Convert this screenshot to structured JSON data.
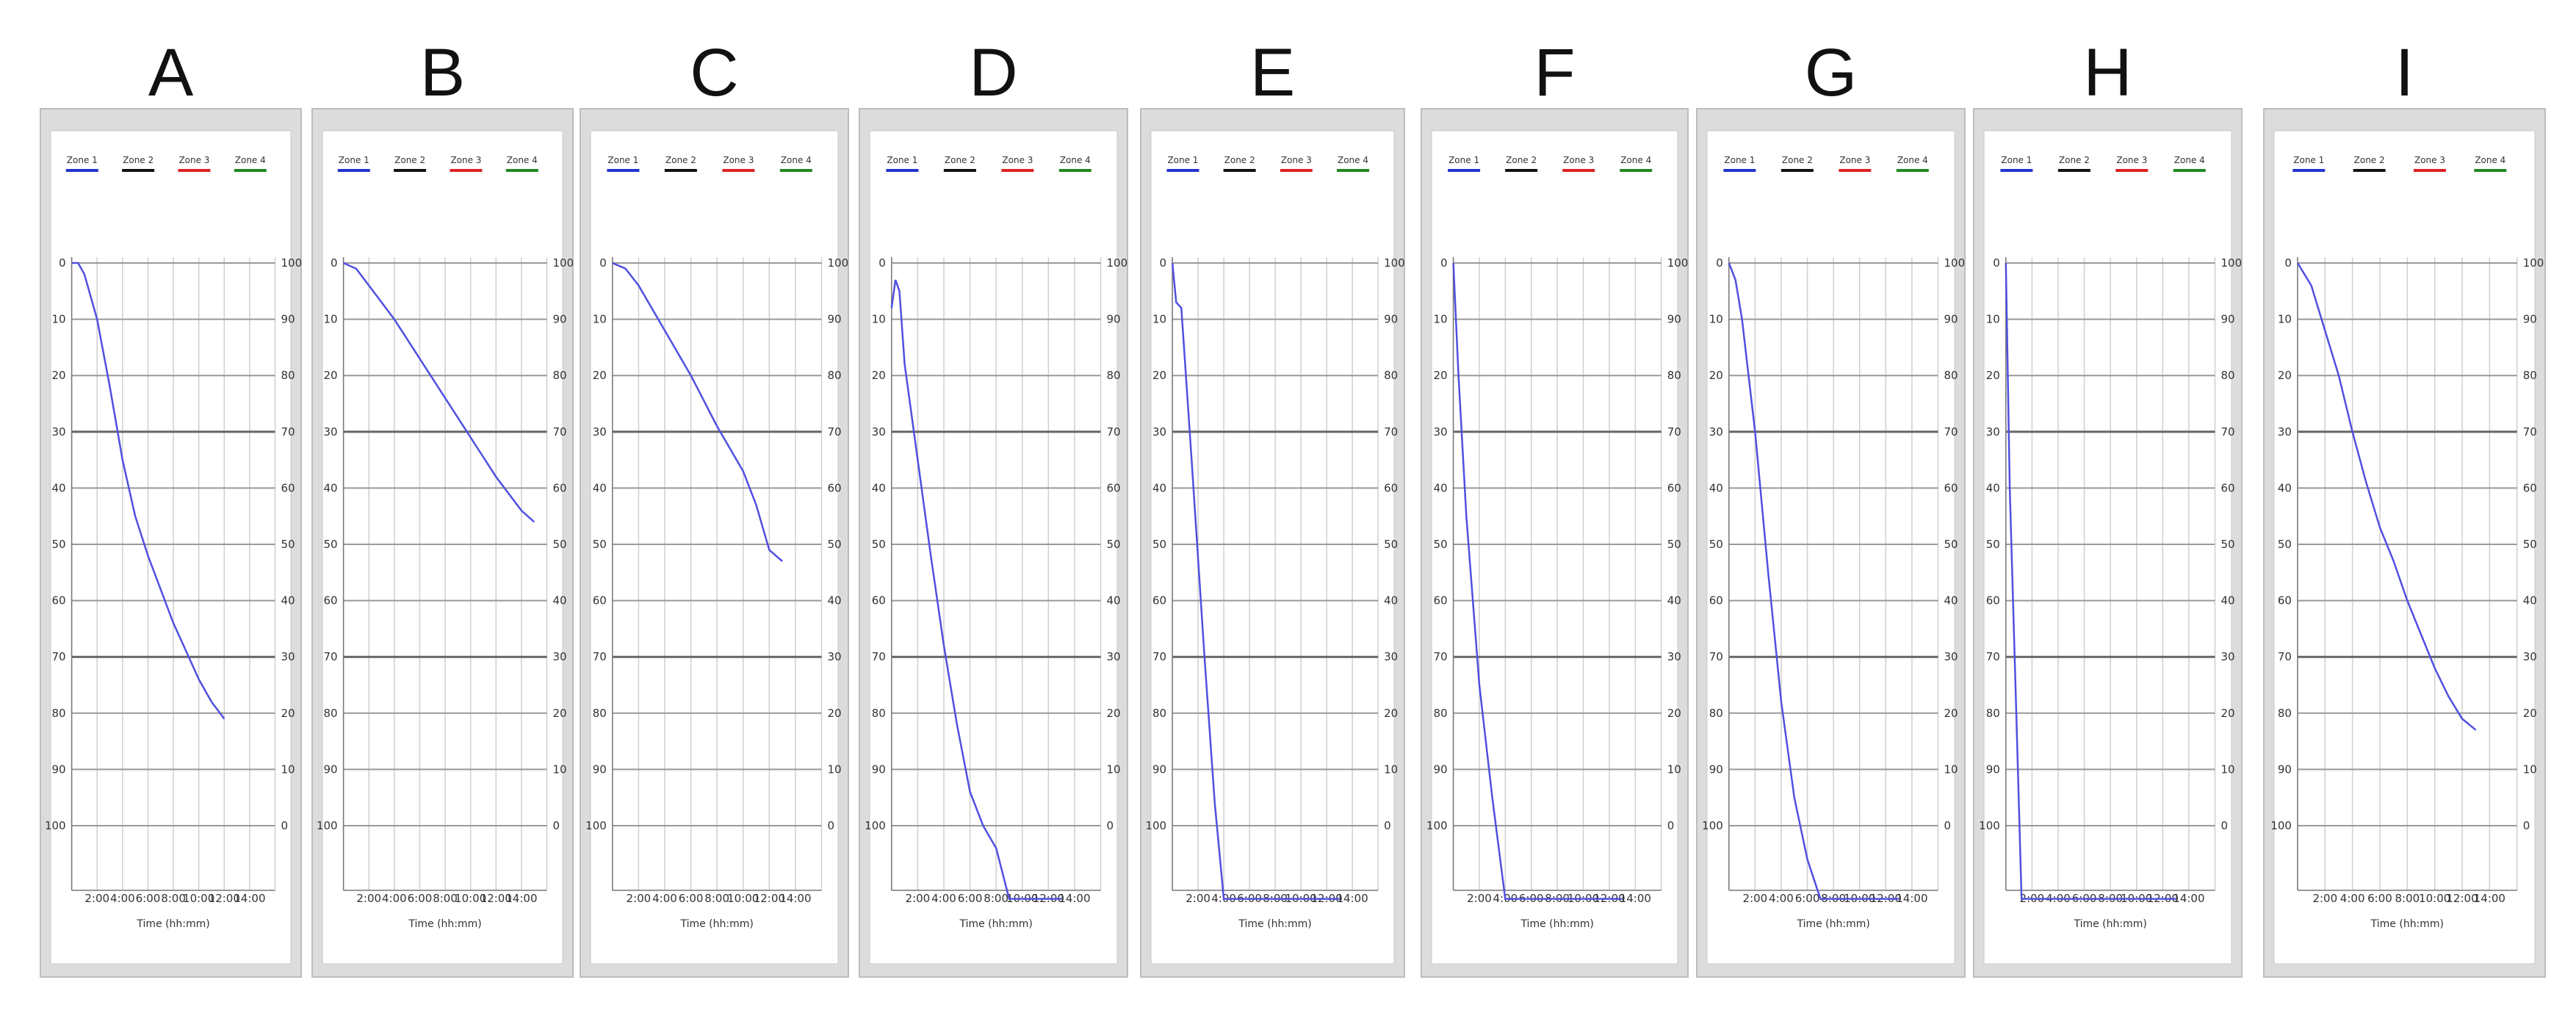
{
  "chart_data": [
    {
      "type": "line",
      "label": "A",
      "xlabel": "Time (hh:mm)",
      "xlim": [
        0,
        16
      ],
      "ylim": [
        0,
        100
      ],
      "x_ticks": [
        "2:00",
        "4:00",
        "6:00",
        "8:00",
        "10:00",
        "12:00",
        "14:00"
      ],
      "y_left_ticks": [
        "0",
        "10",
        "20",
        "30",
        "40",
        "50",
        "60",
        "70",
        "80",
        "90",
        "100"
      ],
      "y_right_ticks": [
        "100",
        "90",
        "80",
        "70",
        "60",
        "50",
        "40",
        "30",
        "20",
        "10",
        "0"
      ],
      "legend": [
        "Zone 1",
        "Zone 2",
        "Zone 3",
        "Zone 4"
      ],
      "series": [
        {
          "color": "#5050e0",
          "points": [
            [
              0,
              0
            ],
            [
              0.5,
              0
            ],
            [
              1,
              2
            ],
            [
              2,
              10
            ],
            [
              3,
              22
            ],
            [
              4,
              35
            ],
            [
              5,
              45
            ],
            [
              6,
              52
            ],
            [
              7,
              58
            ],
            [
              8,
              64
            ],
            [
              9,
              69
            ],
            [
              10,
              74
            ],
            [
              11,
              78
            ],
            [
              12,
              81
            ]
          ]
        }
      ]
    },
    {
      "type": "line",
      "label": "B",
      "xlabel": "Time (hh:mm)",
      "xlim": [
        0,
        16
      ],
      "ylim": [
        0,
        100
      ],
      "x_ticks": [
        "2:00",
        "4:00",
        "6:00",
        "8:00",
        "10:00",
        "12:00",
        "14:00"
      ],
      "y_left_ticks": [
        "0",
        "10",
        "20",
        "30",
        "40",
        "50",
        "60",
        "70",
        "80",
        "90",
        "100"
      ],
      "y_right_ticks": [
        "100",
        "90",
        "80",
        "70",
        "60",
        "50",
        "40",
        "30",
        "20",
        "10",
        "0"
      ],
      "legend": [
        "Zone 1",
        "Zone 2",
        "Zone 3",
        "Zone 4"
      ],
      "series": [
        {
          "color": "#5050e0",
          "points": [
            [
              0,
              0
            ],
            [
              1,
              1
            ],
            [
              2,
              4
            ],
            [
              4,
              10
            ],
            [
              6,
              17
            ],
            [
              8,
              24
            ],
            [
              10,
              31
            ],
            [
              12,
              38
            ],
            [
              14,
              44
            ],
            [
              15,
              46
            ]
          ]
        }
      ]
    },
    {
      "type": "line",
      "label": "C",
      "xlabel": "Time (hh:mm)",
      "xlim": [
        0,
        16
      ],
      "ylim": [
        0,
        100
      ],
      "x_ticks": [
        "2:00",
        "4:00",
        "6:00",
        "8:00",
        "10:00",
        "12:00",
        "14:00"
      ],
      "y_left_ticks": [
        "0",
        "10",
        "20",
        "30",
        "40",
        "50",
        "60",
        "70",
        "80",
        "90",
        "100"
      ],
      "y_right_ticks": [
        "100",
        "90",
        "80",
        "70",
        "60",
        "50",
        "40",
        "30",
        "20",
        "10",
        "0"
      ],
      "legend": [
        "Zone 1",
        "Zone 2",
        "Zone 3",
        "Zone 4"
      ],
      "series": [
        {
          "color": "#5050e0",
          "points": [
            [
              0,
              0
            ],
            [
              1,
              1
            ],
            [
              2,
              4
            ],
            [
              3,
              8
            ],
            [
              4,
              12
            ],
            [
              6,
              20
            ],
            [
              8,
              29
            ],
            [
              10,
              37
            ],
            [
              11,
              43
            ],
            [
              12,
              51
            ],
            [
              13,
              53
            ]
          ]
        }
      ]
    },
    {
      "type": "line",
      "label": "D",
      "xlabel": "Time (hh:mm)",
      "xlim": [
        0,
        16
      ],
      "ylim": [
        0,
        100
      ],
      "x_ticks": [
        "2:00",
        "4:00",
        "6:00",
        "8:00",
        "10:00",
        "12:00",
        "14:00"
      ],
      "y_left_ticks": [
        "0",
        "10",
        "20",
        "30",
        "40",
        "50",
        "60",
        "70",
        "80",
        "90",
        "100"
      ],
      "y_right_ticks": [
        "100",
        "90",
        "80",
        "70",
        "60",
        "50",
        "40",
        "30",
        "20",
        "10",
        "0"
      ],
      "legend": [
        "Zone 1",
        "Zone 2",
        "Zone 3",
        "Zone 4"
      ],
      "series": [
        {
          "color": "#5050e0",
          "points": [
            [
              0,
              8
            ],
            [
              0.3,
              3
            ],
            [
              0.6,
              5
            ],
            [
              1,
              18
            ],
            [
              2,
              35
            ],
            [
              3,
              52
            ],
            [
              4,
              68
            ],
            [
              5,
              82
            ],
            [
              6,
              94
            ],
            [
              7,
              100
            ],
            [
              8,
              104
            ],
            [
              9,
              113
            ],
            [
              10,
              113
            ],
            [
              13,
              113
            ]
          ]
        }
      ]
    },
    {
      "type": "line",
      "label": "E",
      "xlabel": "Time (hh:mm)",
      "xlim": [
        0,
        16
      ],
      "ylim": [
        0,
        100
      ],
      "x_ticks": [
        "2:00",
        "4:00",
        "6:00",
        "8:00",
        "10:00",
        "12:00",
        "14:00"
      ],
      "y_left_ticks": [
        "0",
        "10",
        "20",
        "30",
        "40",
        "50",
        "60",
        "70",
        "80",
        "90",
        "100"
      ],
      "y_right_ticks": [
        "100",
        "90",
        "80",
        "70",
        "60",
        "50",
        "40",
        "30",
        "20",
        "10",
        "0"
      ],
      "legend": [
        "Zone 1",
        "Zone 2",
        "Zone 3",
        "Zone 4"
      ],
      "series": [
        {
          "color": "#5050e0",
          "points": [
            [
              0,
              0
            ],
            [
              0.3,
              7
            ],
            [
              0.7,
              8
            ],
            [
              1.5,
              35
            ],
            [
              2.5,
              70
            ],
            [
              3.3,
              96
            ],
            [
              4,
              113
            ],
            [
              13,
              113
            ]
          ]
        }
      ]
    },
    {
      "type": "line",
      "label": "F",
      "xlabel": "Time (hh:mm)",
      "xlim": [
        0,
        16
      ],
      "ylim": [
        0,
        100
      ],
      "x_ticks": [
        "2:00",
        "4:00",
        "6:00",
        "8:00",
        "10:00",
        "12:00",
        "14:00"
      ],
      "y_left_ticks": [
        "0",
        "10",
        "20",
        "30",
        "40",
        "50",
        "60",
        "70",
        "80",
        "90",
        "100"
      ],
      "y_right_ticks": [
        "100",
        "90",
        "80",
        "70",
        "60",
        "50",
        "40",
        "30",
        "20",
        "10",
        "0"
      ],
      "legend": [
        "Zone 1",
        "Zone 2",
        "Zone 3",
        "Zone 4"
      ],
      "series": [
        {
          "color": "#5050e0",
          "points": [
            [
              0,
              0
            ],
            [
              0.4,
              20
            ],
            [
              1,
              45
            ],
            [
              2,
              75
            ],
            [
              3,
              95
            ],
            [
              4,
              113
            ],
            [
              13,
              113
            ]
          ]
        }
      ]
    },
    {
      "type": "line",
      "label": "G",
      "xlabel": "Time (hh:mm)",
      "xlim": [
        0,
        16
      ],
      "ylim": [
        0,
        100
      ],
      "x_ticks": [
        "2:00",
        "4:00",
        "6:00",
        "8:00",
        "10:00",
        "12:00",
        "14:00"
      ],
      "y_left_ticks": [
        "0",
        "10",
        "20",
        "30",
        "40",
        "50",
        "60",
        "70",
        "80",
        "90",
        "100"
      ],
      "y_right_ticks": [
        "100",
        "90",
        "80",
        "70",
        "60",
        "50",
        "40",
        "30",
        "20",
        "10",
        "0"
      ],
      "legend": [
        "Zone 1",
        "Zone 2",
        "Zone 3",
        "Zone 4"
      ],
      "series": [
        {
          "color": "#5050e0",
          "points": [
            [
              0,
              0
            ],
            [
              0.5,
              3
            ],
            [
              1,
              10
            ],
            [
              2,
              30
            ],
            [
              3,
              55
            ],
            [
              4,
              78
            ],
            [
              5,
              95
            ],
            [
              6,
              106
            ],
            [
              7,
              113
            ],
            [
              13,
              113
            ]
          ]
        }
      ]
    },
    {
      "type": "line",
      "label": "H",
      "xlabel": "Time (hh:mm)",
      "xlim": [
        0,
        16
      ],
      "ylim": [
        0,
        100
      ],
      "x_ticks": [
        "2:00",
        "4:00",
        "6:00",
        "8:00",
        "10:00",
        "12:00",
        "14:00"
      ],
      "y_left_ticks": [
        "0",
        "10",
        "20",
        "30",
        "40",
        "50",
        "60",
        "70",
        "80",
        "90",
        "100"
      ],
      "y_right_ticks": [
        "100",
        "90",
        "80",
        "70",
        "60",
        "50",
        "40",
        "30",
        "20",
        "10",
        "0"
      ],
      "legend": [
        "Zone 1",
        "Zone 2",
        "Zone 3",
        "Zone 4"
      ],
      "series": [
        {
          "color": "#5050e0",
          "points": [
            [
              0,
              0
            ],
            [
              0.3,
              40
            ],
            [
              0.8,
              80
            ],
            [
              1.2,
              113
            ],
            [
              13,
              113
            ]
          ]
        }
      ]
    },
    {
      "type": "line",
      "label": "I",
      "xlabel": "Time (hh:mm)",
      "xlim": [
        0,
        16
      ],
      "ylim": [
        0,
        100
      ],
      "x_ticks": [
        "2:00",
        "4:00",
        "6:00",
        "8:00",
        "10:00",
        "12:00",
        "14:00"
      ],
      "y_left_ticks": [
        "0",
        "10",
        "20",
        "30",
        "40",
        "50",
        "60",
        "70",
        "80",
        "90",
        "100"
      ],
      "y_right_ticks": [
        "100",
        "90",
        "80",
        "70",
        "60",
        "50",
        "40",
        "30",
        "20",
        "10",
        "0"
      ],
      "legend": [
        "Zone 1",
        "Zone 2",
        "Zone 3",
        "Zone 4"
      ],
      "series": [
        {
          "color": "#5050e0",
          "points": [
            [
              0,
              0
            ],
            [
              0.5,
              2
            ],
            [
              1,
              4
            ],
            [
              2,
              12
            ],
            [
              3,
              20
            ],
            [
              4,
              30
            ],
            [
              5,
              39
            ],
            [
              6,
              47
            ],
            [
              7,
              53
            ],
            [
              8,
              60
            ],
            [
              9,
              66
            ],
            [
              10,
              72
            ],
            [
              11,
              77
            ],
            [
              12,
              81
            ],
            [
              13,
              83
            ]
          ]
        }
      ]
    }
  ],
  "legend_colors": [
    "#2233cc",
    "#111111",
    "#dd2222",
    "#228822"
  ]
}
